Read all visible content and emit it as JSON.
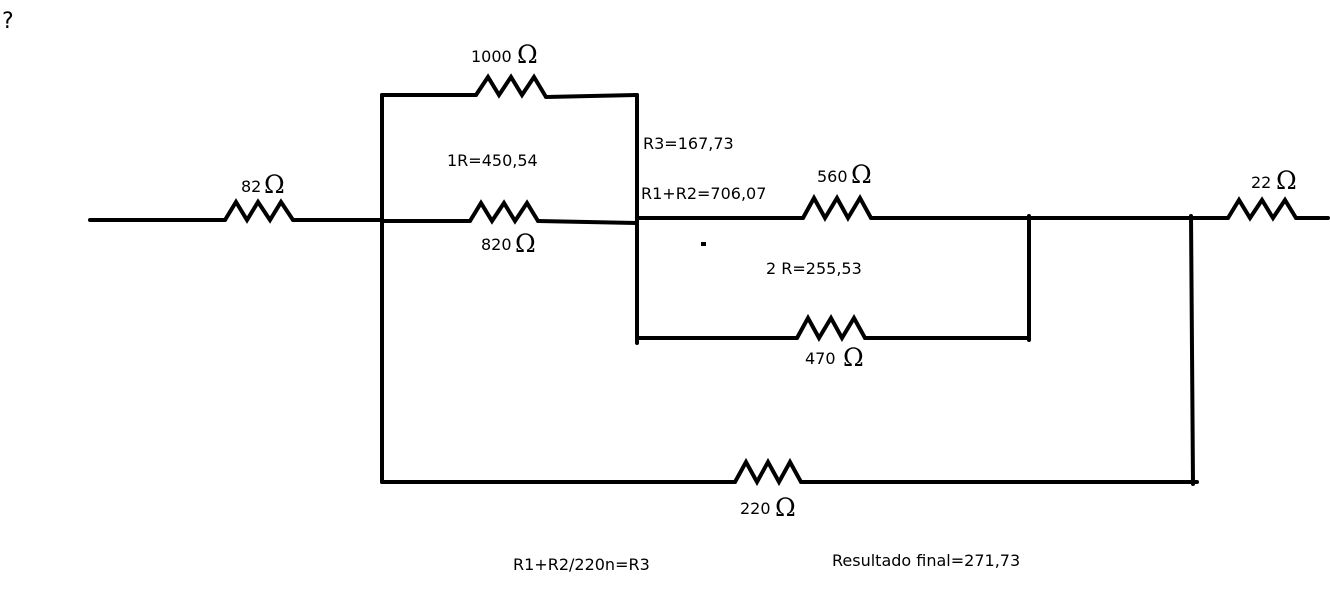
{
  "corner_mark": "?",
  "resistors": {
    "r82": {
      "value": "82",
      "unit": "Ω"
    },
    "r1000": {
      "value": "1000",
      "unit": "Ω"
    },
    "r820": {
      "value": "820",
      "unit": "Ω"
    },
    "r560": {
      "value": "560",
      "unit": "Ω"
    },
    "r470": {
      "value": "470",
      "unit": "Ω"
    },
    "r22": {
      "value": "22",
      "unit": "Ω"
    },
    "r220": {
      "value": "220",
      "unit": "Ω"
    }
  },
  "annotations": {
    "r3": "R3=167,73",
    "r1": "1R=450,54",
    "r1r2": "R1+R2=706,07",
    "r2": "2 R=255,53",
    "formula": "R1+R2/220n=R3",
    "final": "Resultado final=271,73"
  }
}
